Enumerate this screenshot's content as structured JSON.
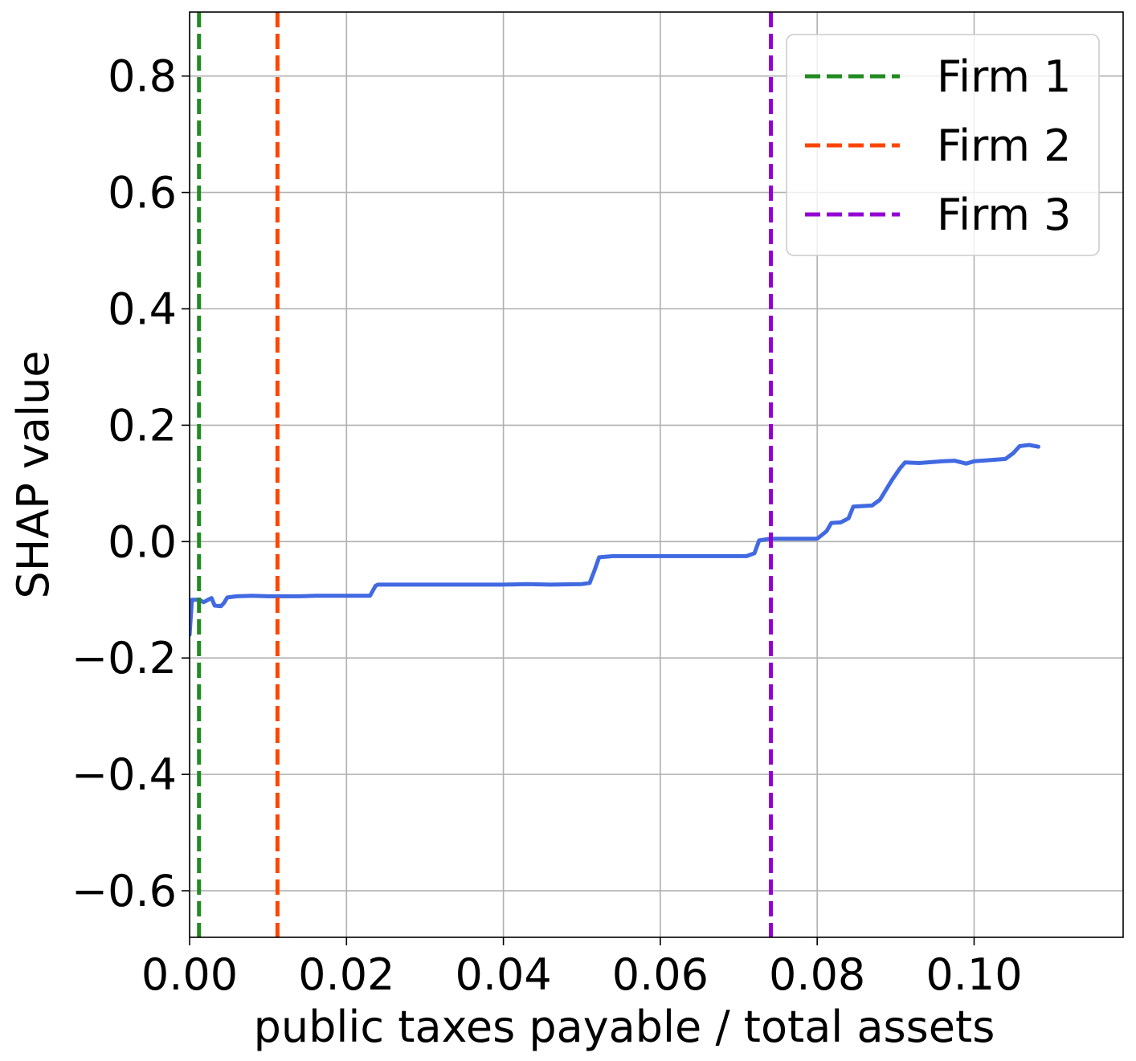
{
  "chart_data": {
    "type": "line",
    "title": "",
    "xlabel": "public taxes payable / total assets",
    "ylabel": "SHAP value",
    "xlim": [
      0.0,
      0.119
    ],
    "ylim": [
      -0.68,
      0.91
    ],
    "grid": true,
    "legend_position": "top-right",
    "x_ticks": [
      0.0,
      0.02,
      0.04,
      0.06,
      0.08,
      0.1
    ],
    "x_tick_labels": [
      "0.00",
      "0.02",
      "0.04",
      "0.06",
      "0.08",
      "0.10"
    ],
    "y_ticks": [
      0.8,
      0.6,
      0.4,
      0.2,
      0.0,
      -0.2,
      -0.4,
      -0.6
    ],
    "y_tick_labels": [
      "0.8",
      "0.6",
      "0.4",
      "0.2",
      "0.0",
      "−0.2",
      "−0.4",
      "−0.6"
    ],
    "series": [
      {
        "color": "#4169e1",
        "points": [
          [
            0.0,
            -0.16
          ],
          [
            0.0003,
            -0.1
          ],
          [
            0.0012,
            -0.1
          ],
          [
            0.0018,
            -0.104
          ],
          [
            0.0025,
            -0.099
          ],
          [
            0.0028,
            -0.097
          ],
          [
            0.0032,
            -0.11
          ],
          [
            0.004,
            -0.111
          ],
          [
            0.0044,
            -0.105
          ],
          [
            0.0048,
            -0.096
          ],
          [
            0.006,
            -0.094
          ],
          [
            0.008,
            -0.093
          ],
          [
            0.01,
            -0.094
          ],
          [
            0.012,
            -0.094
          ],
          [
            0.014,
            -0.094
          ],
          [
            0.016,
            -0.093
          ],
          [
            0.018,
            -0.093
          ],
          [
            0.02,
            -0.093
          ],
          [
            0.022,
            -0.093
          ],
          [
            0.023,
            -0.093
          ],
          [
            0.0237,
            -0.076
          ],
          [
            0.024,
            -0.074
          ],
          [
            0.026,
            -0.074
          ],
          [
            0.03,
            -0.074
          ],
          [
            0.035,
            -0.074
          ],
          [
            0.04,
            -0.074
          ],
          [
            0.043,
            -0.073
          ],
          [
            0.046,
            -0.074
          ],
          [
            0.05,
            -0.073
          ],
          [
            0.051,
            -0.071
          ],
          [
            0.0516,
            -0.05
          ],
          [
            0.0522,
            -0.027
          ],
          [
            0.054,
            -0.025
          ],
          [
            0.058,
            -0.025
          ],
          [
            0.062,
            -0.025
          ],
          [
            0.065,
            -0.025
          ],
          [
            0.069,
            -0.025
          ],
          [
            0.071,
            -0.025
          ],
          [
            0.072,
            -0.02
          ],
          [
            0.0726,
            0.002
          ],
          [
            0.074,
            0.005
          ],
          [
            0.078,
            0.005
          ],
          [
            0.08,
            0.005
          ],
          [
            0.0812,
            0.018
          ],
          [
            0.0818,
            0.032
          ],
          [
            0.083,
            0.033
          ],
          [
            0.084,
            0.04
          ],
          [
            0.0846,
            0.06
          ],
          [
            0.087,
            0.062
          ],
          [
            0.088,
            0.072
          ],
          [
            0.0895,
            0.105
          ],
          [
            0.0905,
            0.125
          ],
          [
            0.0912,
            0.136
          ],
          [
            0.093,
            0.135
          ],
          [
            0.096,
            0.138
          ],
          [
            0.0975,
            0.139
          ],
          [
            0.099,
            0.134
          ],
          [
            0.1,
            0.138
          ],
          [
            0.102,
            0.14
          ],
          [
            0.104,
            0.142
          ],
          [
            0.105,
            0.152
          ],
          [
            0.1058,
            0.164
          ],
          [
            0.107,
            0.166
          ],
          [
            0.1082,
            0.163
          ]
        ]
      },
      {
        "name": "Firm 1",
        "color": "#228b22",
        "style": "dashed",
        "x": 0.0012
      },
      {
        "name": "Firm 2",
        "color": "#ff4500",
        "style": "dashed",
        "x": 0.0112
      },
      {
        "name": "Firm 3",
        "color": "#9400d3",
        "style": "dashed",
        "x": 0.0741
      }
    ]
  }
}
